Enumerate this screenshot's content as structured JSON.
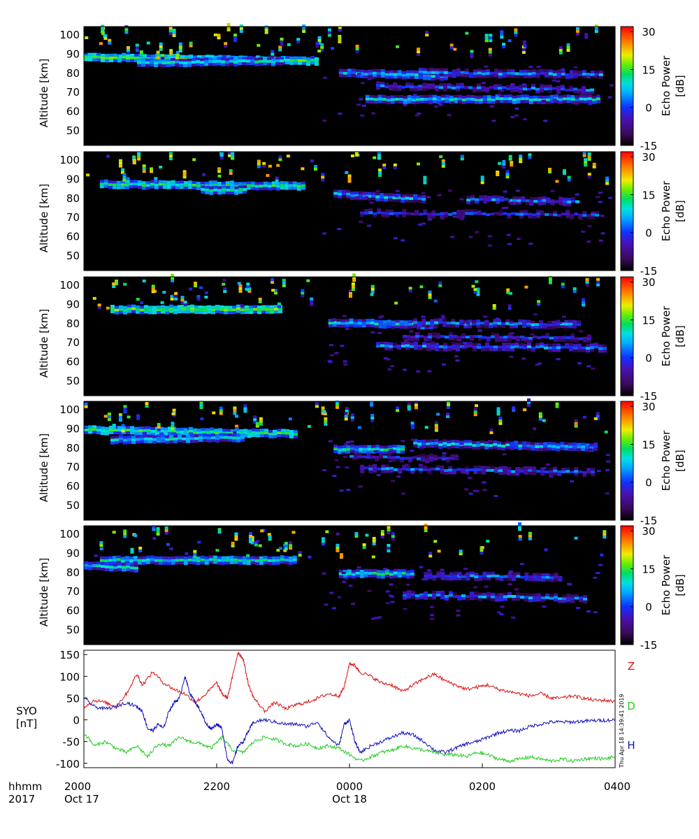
{
  "chart_data": [
    {
      "type": "heatmap",
      "panel": 1,
      "ylabel": "Altitude [km]",
      "y_ticks": [
        50,
        60,
        70,
        80,
        90,
        100
      ],
      "ylim": [
        42,
        104
      ],
      "x_range": [
        "2000 Oct 17",
        "0400 Oct 18"
      ],
      "colorbar": {
        "label": "Echo Power [dB]",
        "ticks": [
          -15,
          0,
          15,
          30
        ],
        "range": [
          -15,
          32
        ]
      },
      "layers": [
        {
          "alt_start": 88,
          "alt_end": 86,
          "t_start": 0,
          "t_end": 0.44,
          "power": 8
        },
        {
          "alt_start": 85,
          "alt_end": 86,
          "t_start": 0.1,
          "t_end": 0.37,
          "power": 3
        },
        {
          "alt_start": 80,
          "alt_end": 78,
          "t_start": 0.48,
          "t_end": 0.68,
          "power": 2
        },
        {
          "alt_start": 66,
          "alt_end": 66,
          "t_start": 0.53,
          "t_end": 0.97,
          "power": 2
        },
        {
          "alt_start": 73,
          "alt_end": 71,
          "t_start": 0.55,
          "t_end": 0.96,
          "power": -4
        },
        {
          "alt_start": 80,
          "alt_end": 79,
          "t_start": 0.63,
          "t_end": 0.97,
          "power": -2
        }
      ]
    },
    {
      "type": "heatmap",
      "panel": 2,
      "ylabel": "Altitude [km]",
      "y_ticks": [
        50,
        60,
        70,
        80,
        90,
        100
      ],
      "ylim": [
        42,
        104
      ],
      "colorbar": {
        "label": "Echo Power [dB]",
        "ticks": [
          -15,
          0,
          15,
          30
        ],
        "range": [
          -15,
          32
        ]
      },
      "layers": [
        {
          "alt_start": 87,
          "alt_end": 86,
          "t_start": 0.03,
          "t_end": 0.41,
          "power": 6
        },
        {
          "alt_start": 84,
          "alt_end": 84,
          "t_start": 0.22,
          "t_end": 0.3,
          "power": 4
        },
        {
          "alt_start": 82,
          "alt_end": 79,
          "t_start": 0.47,
          "t_end": 0.64,
          "power": 0
        },
        {
          "alt_start": 72,
          "alt_end": 71,
          "t_start": 0.52,
          "t_end": 0.97,
          "power": -6
        },
        {
          "alt_start": 79,
          "alt_end": 78,
          "t_start": 0.72,
          "t_end": 0.93,
          "power": -3
        }
      ]
    },
    {
      "type": "heatmap",
      "panel": 3,
      "ylabel": "Altitude [km]",
      "y_ticks": [
        50,
        60,
        70,
        80,
        90,
        100
      ],
      "ylim": [
        42,
        104
      ],
      "colorbar": {
        "label": "Echo Power [dB]",
        "ticks": [
          -15,
          0,
          15,
          30
        ],
        "range": [
          -15,
          32
        ]
      },
      "layers": [
        {
          "alt_start": 87,
          "alt_end": 87,
          "t_start": 0.05,
          "t_end": 0.37,
          "power": 9
        },
        {
          "alt_start": 80,
          "alt_end": 79,
          "t_start": 0.46,
          "t_end": 0.66,
          "power": 2
        },
        {
          "alt_start": 68,
          "alt_end": 67,
          "t_start": 0.55,
          "t_end": 0.98,
          "power": -3
        },
        {
          "alt_start": 80,
          "alt_end": 79,
          "t_start": 0.62,
          "t_end": 0.93,
          "power": -2
        },
        {
          "alt_start": 73,
          "alt_end": 72,
          "t_start": 0.6,
          "t_end": 0.95,
          "power": -6
        }
      ]
    },
    {
      "type": "heatmap",
      "panel": 4,
      "ylabel": "Altitude [km]",
      "y_ticks": [
        50,
        60,
        70,
        80,
        90,
        100
      ],
      "ylim": [
        42,
        104
      ],
      "colorbar": {
        "label": "Echo Power [dB]",
        "ticks": [
          -15,
          0,
          15,
          30
        ],
        "range": [
          -15,
          32
        ]
      },
      "layers": [
        {
          "alt_start": 89,
          "alt_end": 87,
          "t_start": 0,
          "t_end": 0.4,
          "power": 7
        },
        {
          "alt_start": 84,
          "alt_end": 85,
          "t_start": 0.05,
          "t_end": 0.3,
          "power": 3
        },
        {
          "alt_start": 79,
          "alt_end": 79,
          "t_start": 0.47,
          "t_end": 0.6,
          "power": 3
        },
        {
          "alt_start": 82,
          "alt_end": 80,
          "t_start": 0.62,
          "t_end": 0.96,
          "power": 1
        },
        {
          "alt_start": 69,
          "alt_end": 67,
          "t_start": 0.52,
          "t_end": 0.96,
          "power": -4
        },
        {
          "alt_start": 75,
          "alt_end": 74,
          "t_start": 0.5,
          "t_end": 0.7,
          "power": -6
        }
      ]
    },
    {
      "type": "heatmap",
      "panel": 5,
      "ylabel": "Altitude [km]",
      "y_ticks": [
        50,
        60,
        70,
        80,
        90,
        100
      ],
      "ylim": [
        42,
        104
      ],
      "colorbar": {
        "label": "Echo Power [dB]",
        "ticks": [
          -15,
          0,
          15,
          30
        ],
        "range": [
          -15,
          32
        ]
      },
      "layers": [
        {
          "alt_start": 86,
          "alt_end": 86,
          "t_start": 0.03,
          "t_end": 0.4,
          "power": 4
        },
        {
          "alt_start": 83,
          "alt_end": 82,
          "t_start": 0,
          "t_end": 0.1,
          "power": 2
        },
        {
          "alt_start": 79,
          "alt_end": 79,
          "t_start": 0.48,
          "t_end": 0.62,
          "power": 4
        },
        {
          "alt_start": 68,
          "alt_end": 66,
          "t_start": 0.6,
          "t_end": 0.94,
          "power": -2
        },
        {
          "alt_start": 78,
          "alt_end": 77,
          "t_start": 0.64,
          "t_end": 0.9,
          "power": -3
        }
      ]
    },
    {
      "type": "line",
      "panel": 6,
      "ylabel": "SYO [nT]",
      "y_ticks": [
        -100,
        -50,
        0,
        50,
        100,
        150
      ],
      "ylim": [
        -110,
        160
      ],
      "x_ticks": [
        {
          "top": "2000",
          "bottom": "Oct 17",
          "t": 0
        },
        {
          "top": "2200",
          "bottom": "",
          "t": 0.25
        },
        {
          "top": "0000",
          "bottom": "Oct 18",
          "t": 0.5
        },
        {
          "top": "0200",
          "bottom": "",
          "t": 0.75
        },
        {
          "top": "0400",
          "bottom": "",
          "t": 1.0
        }
      ],
      "x_label_top": "hhmm",
      "x_label_bottom": "2017",
      "stamp": "Thu Apr 18 14:39:41 2019",
      "series": [
        {
          "name": "Z",
          "color": "#dd1111",
          "t": [
            0,
            0.02,
            0.04,
            0.06,
            0.08,
            0.1,
            0.11,
            0.13,
            0.15,
            0.17,
            0.19,
            0.21,
            0.23,
            0.25,
            0.26,
            0.27,
            0.28,
            0.29,
            0.3,
            0.31,
            0.32,
            0.34,
            0.36,
            0.38,
            0.4,
            0.42,
            0.44,
            0.46,
            0.48,
            0.49,
            0.5,
            0.51,
            0.52,
            0.54,
            0.56,
            0.58,
            0.6,
            0.62,
            0.64,
            0.66,
            0.68,
            0.7,
            0.72,
            0.74,
            0.76,
            0.78,
            0.8,
            0.82,
            0.84,
            0.86,
            0.88,
            0.9,
            0.92,
            0.94,
            0.96,
            0.98,
            1.0
          ],
          "values": [
            30,
            45,
            40,
            30,
            60,
            105,
            80,
            110,
            85,
            70,
            60,
            40,
            60,
            85,
            60,
            50,
            100,
            155,
            140,
            80,
            50,
            20,
            40,
            25,
            35,
            40,
            50,
            60,
            55,
            75,
            130,
            125,
            110,
            100,
            85,
            80,
            65,
            80,
            95,
            105,
            90,
            80,
            70,
            75,
            80,
            70,
            65,
            60,
            55,
            60,
            50,
            50,
            55,
            50,
            45,
            45,
            42
          ]
        },
        {
          "name": "D",
          "color": "#22cc22",
          "t": [
            0,
            0.02,
            0.04,
            0.06,
            0.08,
            0.1,
            0.12,
            0.14,
            0.16,
            0.18,
            0.2,
            0.22,
            0.24,
            0.26,
            0.28,
            0.3,
            0.32,
            0.34,
            0.36,
            0.38,
            0.4,
            0.42,
            0.44,
            0.46,
            0.48,
            0.5,
            0.52,
            0.54,
            0.56,
            0.58,
            0.6,
            0.62,
            0.64,
            0.66,
            0.68,
            0.7,
            0.72,
            0.74,
            0.76,
            0.78,
            0.8,
            0.82,
            0.84,
            0.86,
            0.88,
            0.9,
            0.92,
            0.94,
            0.96,
            0.98,
            1.0
          ],
          "values": [
            -30,
            -60,
            -50,
            -65,
            -75,
            -60,
            -85,
            -55,
            -60,
            -40,
            -50,
            -55,
            -65,
            -40,
            -70,
            -75,
            -50,
            -40,
            -45,
            -55,
            -60,
            -55,
            -65,
            -60,
            -65,
            -80,
            -95,
            -85,
            -75,
            -70,
            -60,
            -65,
            -70,
            -75,
            -80,
            -80,
            -85,
            -75,
            -80,
            -90,
            -95,
            -90,
            -85,
            -90,
            -95,
            -90,
            -95,
            -90,
            -88,
            -90,
            -85
          ]
        },
        {
          "name": "H",
          "color": "#1111bb",
          "t": [
            0,
            0.02,
            0.04,
            0.06,
            0.08,
            0.1,
            0.11,
            0.12,
            0.13,
            0.14,
            0.15,
            0.16,
            0.17,
            0.18,
            0.19,
            0.2,
            0.21,
            0.22,
            0.23,
            0.24,
            0.25,
            0.26,
            0.27,
            0.28,
            0.29,
            0.3,
            0.31,
            0.32,
            0.34,
            0.36,
            0.38,
            0.4,
            0.42,
            0.44,
            0.46,
            0.48,
            0.49,
            0.5,
            0.51,
            0.52,
            0.54,
            0.56,
            0.58,
            0.6,
            0.62,
            0.64,
            0.66,
            0.68,
            0.7,
            0.72,
            0.74,
            0.76,
            0.78,
            0.8,
            0.82,
            0.84,
            0.86,
            0.88,
            0.9,
            0.92,
            0.94,
            0.96,
            0.98,
            1.0
          ],
          "values": [
            50,
            30,
            25,
            30,
            40,
            30,
            20,
            -20,
            -25,
            -10,
            -20,
            20,
            40,
            50,
            100,
            60,
            40,
            20,
            -10,
            -20,
            -10,
            -20,
            -90,
            -100,
            -60,
            -50,
            -25,
            -5,
            0,
            -5,
            -10,
            -10,
            -15,
            -5,
            -40,
            -60,
            -10,
            0,
            -50,
            -75,
            -60,
            -50,
            -40,
            -30,
            -35,
            -50,
            -70,
            -75,
            -65,
            -55,
            -50,
            -40,
            -30,
            -25,
            -25,
            -15,
            -10,
            -5,
            -5,
            -5,
            -3,
            -2,
            -1,
            0
          ]
        }
      ]
    }
  ]
}
